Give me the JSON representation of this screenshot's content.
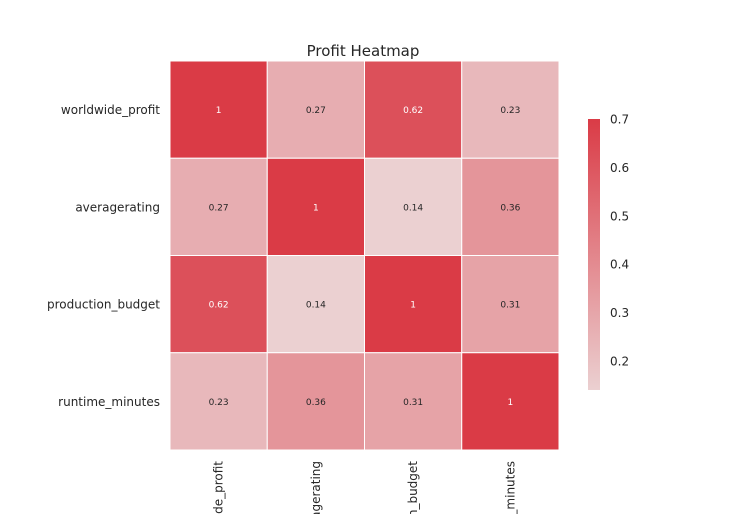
{
  "chart_data": {
    "type": "heatmap",
    "title": "Profit Heatmap",
    "rows": [
      "worldwide_profit",
      "averagerating",
      "production_budget",
      "runtime_minutes"
    ],
    "columns_visible_labels": [
      "ide_profit",
      "agerating",
      "n_budget",
      "_minutes"
    ],
    "values": [
      [
        1,
        0.27,
        0.62,
        0.23
      ],
      [
        0.27,
        1,
        0.14,
        0.36
      ],
      [
        0.62,
        0.14,
        1,
        0.31
      ],
      [
        0.23,
        0.36,
        0.31,
        1
      ]
    ],
    "cell_labels": [
      [
        "1",
        "0.27",
        "0.62",
        "0.23"
      ],
      [
        "0.27",
        "1",
        "0.14",
        "0.36"
      ],
      [
        "0.62",
        "0.14",
        "1",
        "0.31"
      ],
      [
        "0.23",
        "0.36",
        "0.31",
        "1"
      ]
    ],
    "colorbar": {
      "min": 0.14,
      "max": 0.7,
      "ticks": [
        0.2,
        0.3,
        0.4,
        0.5,
        0.6,
        0.7
      ],
      "tick_labels": [
        "0.2",
        "0.3",
        "0.4",
        "0.5",
        "0.6",
        "0.7"
      ],
      "color_low": "#ebd0d1",
      "color_high": "#da3b46"
    },
    "grid": false,
    "legend": "colorbar-right"
  }
}
